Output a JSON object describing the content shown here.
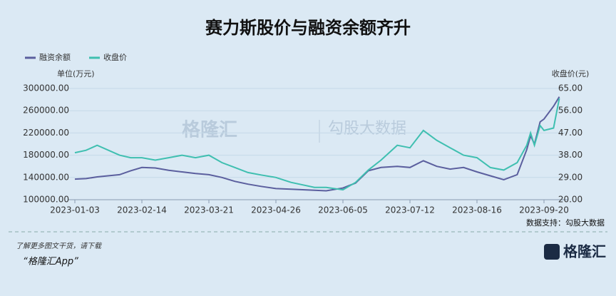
{
  "chart_data": {
    "type": "line",
    "title": "赛力斯股价与融资余额齐升",
    "y_label": "单位(万元)",
    "y2_label": "收盘价(元)",
    "x": [
      "2023-01-03",
      "2023-01-10",
      "2023-01-17",
      "2023-01-31",
      "2023-02-07",
      "2023-02-14",
      "2023-02-21",
      "2023-02-28",
      "2023-03-07",
      "2023-03-14",
      "2023-03-21",
      "2023-03-28",
      "2023-04-04",
      "2023-04-11",
      "2023-04-18",
      "2023-04-26",
      "2023-05-05",
      "2023-05-12",
      "2023-05-19",
      "2023-05-26",
      "2023-06-05",
      "2023-06-12",
      "2023-06-19",
      "2023-06-26",
      "2023-07-05",
      "2023-07-12",
      "2023-07-19",
      "2023-07-26",
      "2023-08-02",
      "2023-08-09",
      "2023-08-16",
      "2023-08-23",
      "2023-08-30",
      "2023-09-06",
      "2023-09-11",
      "2023-09-13",
      "2023-09-15",
      "2023-09-18",
      "2023-09-20",
      "2023-09-25",
      "2023-09-28"
    ],
    "xticks": [
      "2023-01-03",
      "2023-02-14",
      "2023-03-21",
      "2023-04-26",
      "2023-06-05",
      "2023-07-12",
      "2023-08-16",
      "2023-09-20"
    ],
    "series": [
      {
        "name": "融资余额",
        "color": "#5b5f9e",
        "axis": "y",
        "values": [
          137000,
          138000,
          141000,
          145000,
          152000,
          158000,
          157000,
          153000,
          150000,
          147000,
          145000,
          140000,
          133000,
          128000,
          124000,
          120000,
          119000,
          118000,
          117000,
          116000,
          121000,
          130000,
          152000,
          158000,
          160000,
          158000,
          170000,
          160000,
          155000,
          158000,
          150000,
          143000,
          136000,
          145000,
          190000,
          215000,
          200000,
          240000,
          245000,
          268000,
          285000
        ]
      },
      {
        "name": "收盘价",
        "color": "#3fbfb0",
        "axis": "y2",
        "values": [
          39,
          40,
          42,
          38,
          37,
          37,
          36,
          37,
          38,
          37,
          38,
          35,
          33,
          31,
          30,
          29,
          27,
          26,
          25,
          25,
          24,
          27,
          32,
          36,
          42,
          41,
          48,
          44,
          41,
          38,
          37,
          33,
          32,
          35,
          42,
          47,
          42,
          50,
          48,
          49,
          61
        ]
      }
    ],
    "ylim": [
      100000,
      300000
    ],
    "yticks": [
      {
        "value": 100000,
        "label": "100000.00"
      },
      {
        "value": 140000,
        "label": "140000.00"
      },
      {
        "value": 180000,
        "label": "180000.00"
      },
      {
        "value": 220000,
        "label": "220000.00"
      },
      {
        "value": 260000,
        "label": "260000.00"
      },
      {
        "value": 300000,
        "label": "300000.00"
      }
    ],
    "y2lim": [
      20,
      65
    ],
    "y2ticks": [
      {
        "value": 20,
        "label": "20.00"
      },
      {
        "value": 29,
        "label": "29.00"
      },
      {
        "value": 38,
        "label": "38.00"
      },
      {
        "value": 47,
        "label": "47.00"
      },
      {
        "value": 56,
        "label": "56.00"
      },
      {
        "value": 65,
        "label": "65.00"
      }
    ],
    "grid": true,
    "legend": "top-left",
    "source": "数据支持：勾股大数据"
  },
  "footer": {
    "prompt": "了解更多图文干货，请下载",
    "app": "“格隆汇App”",
    "logo": "格隆汇",
    "watermark_brand": "格隆汇",
    "watermark_data": "勾股大数据"
  }
}
